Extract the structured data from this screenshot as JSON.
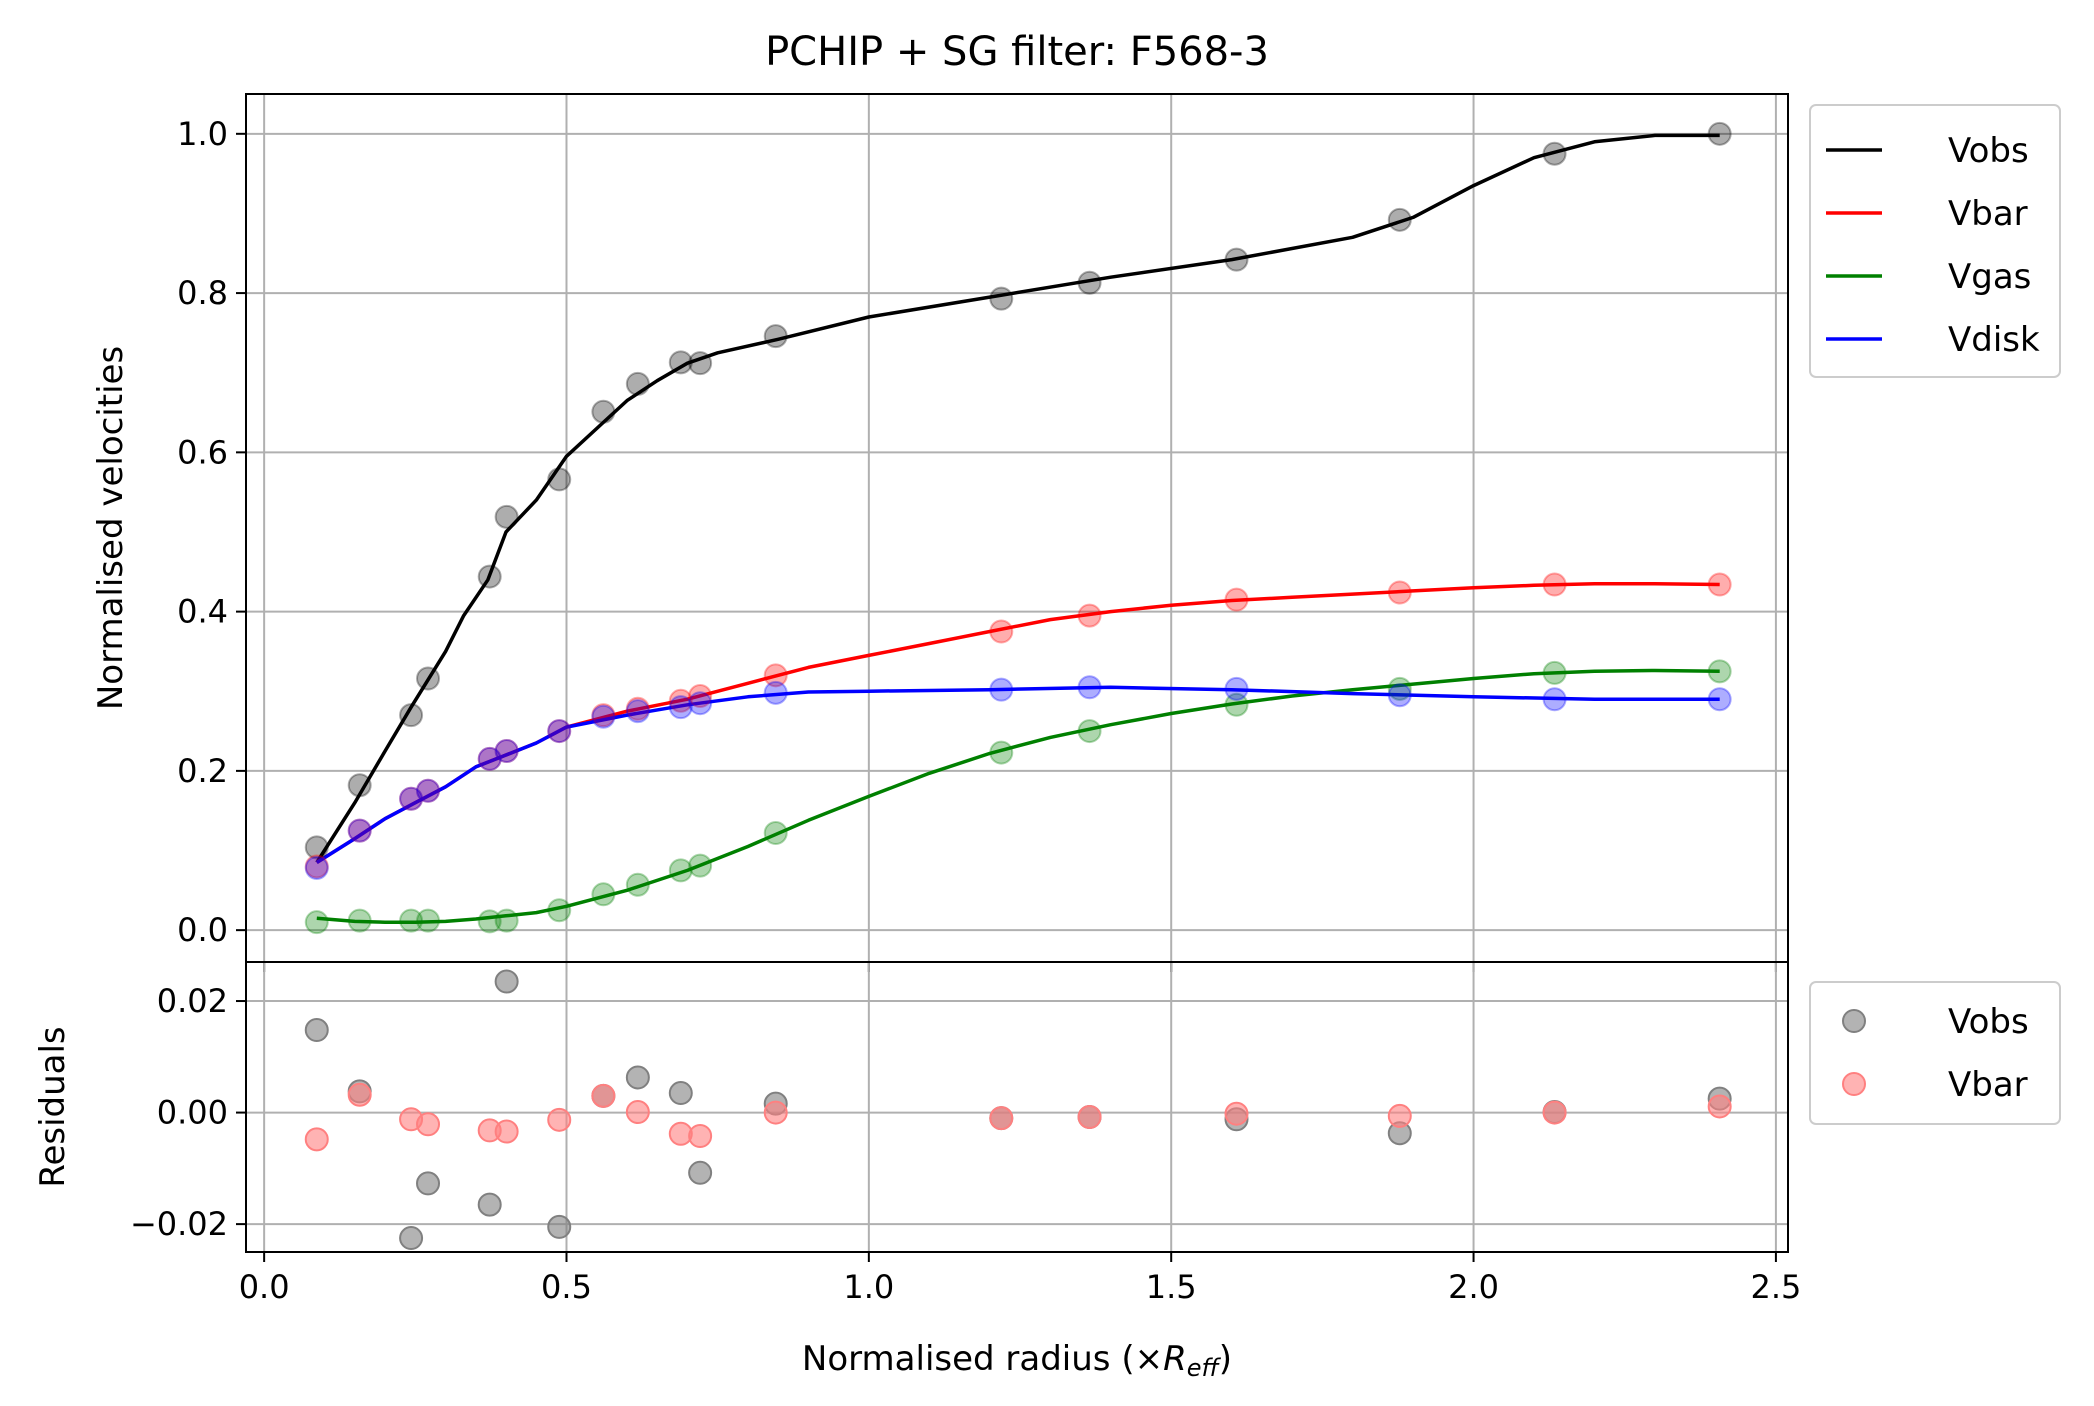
{
  "chart_data": [
    {
      "type": "line",
      "title": "PCHIP + SG filter: F568-3",
      "xlabel": "",
      "ylabel": "Normalised velocities",
      "xlim": [
        -0.03,
        2.52
      ],
      "ylim": [
        -0.04,
        1.05
      ],
      "xticks": [
        0.0,
        0.5,
        1.0,
        1.5,
        2.0,
        2.5
      ],
      "yticks": [
        0.0,
        0.2,
        0.4,
        0.6,
        0.8,
        1.0
      ],
      "ytick_labels": [
        "0.0",
        "0.2",
        "0.4",
        "0.6",
        "0.8",
        "1.0"
      ],
      "grid": true,
      "legend": "outside upper right",
      "radius_points": [
        0.087,
        0.158,
        0.243,
        0.271,
        0.373,
        0.401,
        0.488,
        0.561,
        0.618,
        0.689,
        0.721,
        0.846,
        1.219,
        1.365,
        1.608,
        1.878,
        2.134,
        2.407
      ],
      "series": [
        {
          "name": "Vobs",
          "color": "#000000",
          "points": [
            0.104,
            0.182,
            0.27,
            0.316,
            0.444,
            0.519,
            0.566,
            0.651,
            0.686,
            0.713,
            0.712,
            0.746,
            0.793,
            0.813,
            0.842,
            0.892,
            0.975,
            1.0
          ],
          "curve_x": [
            0.087,
            0.15,
            0.2,
            0.243,
            0.3,
            0.33,
            0.37,
            0.4,
            0.45,
            0.5,
            0.55,
            0.6,
            0.65,
            0.7,
            0.75,
            0.85,
            1.0,
            1.2,
            1.4,
            1.6,
            1.8,
            1.9,
            2.0,
            2.1,
            2.2,
            2.3,
            2.407
          ],
          "curve_y": [
            0.085,
            0.16,
            0.225,
            0.28,
            0.35,
            0.395,
            0.44,
            0.5,
            0.54,
            0.595,
            0.63,
            0.665,
            0.69,
            0.712,
            0.725,
            0.742,
            0.77,
            0.795,
            0.82,
            0.842,
            0.87,
            0.895,
            0.935,
            0.97,
            0.99,
            0.998,
            0.998
          ]
        },
        {
          "name": "Vbar",
          "color": "#ff0000",
          "points": [
            0.08,
            0.125,
            0.165,
            0.175,
            0.215,
            0.225,
            0.25,
            0.27,
            0.278,
            0.288,
            0.294,
            0.32,
            0.375,
            0.395,
            0.415,
            0.424,
            0.434,
            0.434
          ],
          "curve_x": [
            0.087,
            0.15,
            0.2,
            0.25,
            0.3,
            0.35,
            0.4,
            0.45,
            0.5,
            0.6,
            0.7,
            0.8,
            0.9,
            1.0,
            1.1,
            1.2,
            1.3,
            1.4,
            1.5,
            1.6,
            1.7,
            1.8,
            1.9,
            2.0,
            2.1,
            2.2,
            2.3,
            2.407
          ],
          "curve_y": [
            0.085,
            0.115,
            0.14,
            0.16,
            0.18,
            0.205,
            0.22,
            0.235,
            0.255,
            0.275,
            0.29,
            0.31,
            0.33,
            0.345,
            0.36,
            0.375,
            0.39,
            0.4,
            0.408,
            0.414,
            0.418,
            0.422,
            0.426,
            0.43,
            0.433,
            0.435,
            0.435,
            0.434
          ]
        },
        {
          "name": "Vgas",
          "color": "#008000",
          "points": [
            0.01,
            0.012,
            0.012,
            0.012,
            0.011,
            0.012,
            0.025,
            0.045,
            0.057,
            0.075,
            0.081,
            0.122,
            0.223,
            0.25,
            0.283,
            0.303,
            0.323,
            0.325
          ],
          "curve_x": [
            0.087,
            0.15,
            0.2,
            0.25,
            0.3,
            0.35,
            0.4,
            0.45,
            0.5,
            0.6,
            0.7,
            0.8,
            0.9,
            1.0,
            1.1,
            1.2,
            1.3,
            1.4,
            1.5,
            1.6,
            1.7,
            1.8,
            1.9,
            2.0,
            2.1,
            2.2,
            2.3,
            2.407
          ],
          "curve_y": [
            0.015,
            0.011,
            0.01,
            0.01,
            0.011,
            0.014,
            0.018,
            0.022,
            0.03,
            0.05,
            0.075,
            0.105,
            0.138,
            0.168,
            0.197,
            0.222,
            0.242,
            0.258,
            0.272,
            0.284,
            0.294,
            0.302,
            0.309,
            0.316,
            0.322,
            0.325,
            0.326,
            0.325
          ]
        },
        {
          "name": "Vdisk",
          "color": "#0000ff",
          "points": [
            0.078,
            0.125,
            0.165,
            0.175,
            0.215,
            0.225,
            0.25,
            0.268,
            0.275,
            0.28,
            0.285,
            0.298,
            0.302,
            0.305,
            0.303,
            0.295,
            0.29,
            0.29
          ],
          "curve_x": [
            0.087,
            0.15,
            0.2,
            0.25,
            0.3,
            0.35,
            0.4,
            0.45,
            0.5,
            0.6,
            0.7,
            0.8,
            0.9,
            1.0,
            1.2,
            1.4,
            1.6,
            1.8,
            2.0,
            2.2,
            2.407
          ],
          "curve_y": [
            0.085,
            0.115,
            0.14,
            0.16,
            0.18,
            0.205,
            0.22,
            0.235,
            0.255,
            0.27,
            0.283,
            0.293,
            0.299,
            0.3,
            0.302,
            0.305,
            0.302,
            0.297,
            0.293,
            0.29,
            0.29
          ]
        }
      ]
    },
    {
      "type": "scatter",
      "title": "",
      "xlabel": "Normalised radius (×",
      "xlabel_math": "R",
      "xlabel_sub": "eff",
      "xlabel_suffix": ")",
      "ylabel": "Residuals",
      "xlim": [
        -0.03,
        2.52
      ],
      "ylim": [
        -0.025,
        0.027
      ],
      "xticks": [
        0.0,
        0.5,
        1.0,
        1.5,
        2.0,
        2.5
      ],
      "xtick_labels": [
        "0.0",
        "0.5",
        "1.0",
        "1.5",
        "2.0",
        "2.5"
      ],
      "yticks": [
        -0.02,
        0.0,
        0.02
      ],
      "ytick_labels": [
        "−0.02",
        "0.00",
        "0.02"
      ],
      "grid": true,
      "legend": "outside upper right",
      "series": [
        {
          "name": "Vobs",
          "color": "#808080",
          "x": [
            0.087,
            0.158,
            0.243,
            0.271,
            0.373,
            0.401,
            0.488,
            0.561,
            0.618,
            0.689,
            0.721,
            0.846,
            1.219,
            1.365,
            1.608,
            1.878,
            2.134,
            2.407
          ],
          "y": [
            0.0148,
            0.0038,
            -0.0225,
            -0.0127,
            -0.0165,
            0.0235,
            -0.0205,
            0.003,
            0.0063,
            0.0035,
            -0.0108,
            0.0016,
            -0.001,
            -0.0008,
            -0.0012,
            -0.0037,
            0.0001,
            0.0025
          ]
        },
        {
          "name": "Vbar",
          "color": "#ff8080",
          "x": [
            0.087,
            0.158,
            0.243,
            0.271,
            0.373,
            0.401,
            0.488,
            0.561,
            0.618,
            0.689,
            0.721,
            0.846,
            1.219,
            1.365,
            1.608,
            1.878,
            2.134,
            2.407
          ],
          "y": [
            -0.0048,
            0.0032,
            -0.0012,
            -0.0021,
            -0.0032,
            -0.0034,
            -0.0013,
            0.003,
            0.0001,
            -0.0038,
            -0.0042,
            0.0,
            -0.001,
            -0.0008,
            -0.0002,
            -0.0006,
            0.0,
            0.0011
          ]
        }
      ]
    }
  ]
}
